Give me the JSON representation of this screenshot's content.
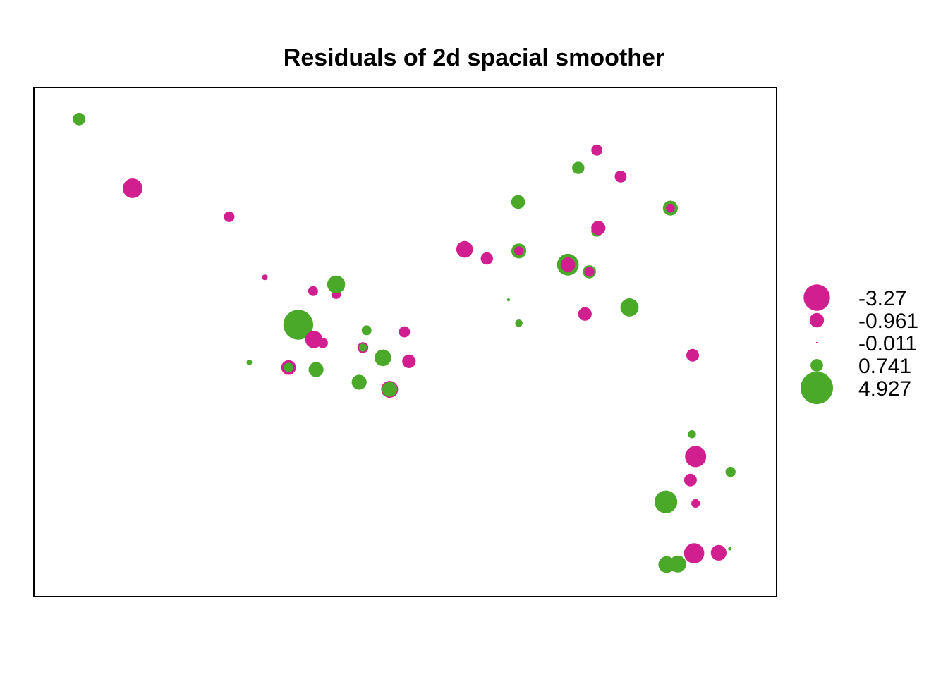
{
  "chart_data": {
    "type": "scatter",
    "subtype": "bubble",
    "title": "Residuals of 2d spacial smoother",
    "xlabel": "",
    "ylabel": "",
    "axes_shown": false,
    "frame": true,
    "xlim": [
      0,
      100
    ],
    "ylim": [
      0,
      100
    ],
    "colors": {
      "negative": "#d21f8f",
      "positive": "#4ba92a",
      "frame": "#000000"
    },
    "size_scale": {
      "reference_value": 4.927
    },
    "legend": {
      "placement": "right",
      "entries": [
        {
          "label": "-3.27",
          "value": -3.27
        },
        {
          "label": "-0.961",
          "value": -0.961
        },
        {
          "label": "-0.011",
          "value": -0.011
        },
        {
          "label": "0.741",
          "value": 0.741
        },
        {
          "label": "4.927",
          "value": 4.927
        }
      ]
    },
    "points": [
      {
        "x": 6.1,
        "y": 93.8,
        "residual": 0.741
      },
      {
        "x": 13.3,
        "y": 80.2,
        "residual": -1.8
      },
      {
        "x": 26.3,
        "y": 74.6,
        "residual": -0.53
      },
      {
        "x": 31.1,
        "y": 62.7,
        "residual": -0.15
      },
      {
        "x": 37.6,
        "y": 60.0,
        "residual": -0.45
      },
      {
        "x": 40.7,
        "y": 59.4,
        "residual": -0.43
      },
      {
        "x": 40.7,
        "y": 61.3,
        "residual": 1.5
      },
      {
        "x": 35.6,
        "y": 53.4,
        "residual": 4.2
      },
      {
        "x": 37.7,
        "y": 50.5,
        "residual": -1.4
      },
      {
        "x": 38.9,
        "y": 49.8,
        "residual": -0.5
      },
      {
        "x": 29.0,
        "y": 46.0,
        "residual": 0.15
      },
      {
        "x": 34.3,
        "y": 45.0,
        "residual": -1.0
      },
      {
        "x": 34.3,
        "y": 45.0,
        "residual": 0.4
      },
      {
        "x": 38.0,
        "y": 44.6,
        "residual": 1.05
      },
      {
        "x": 44.8,
        "y": 52.3,
        "residual": 0.45
      },
      {
        "x": 44.3,
        "y": 48.9,
        "residual": -0.55
      },
      {
        "x": 44.3,
        "y": 48.9,
        "residual": 0.3
      },
      {
        "x": 47.0,
        "y": 46.9,
        "residual": 1.3
      },
      {
        "x": 49.9,
        "y": 52.0,
        "residual": -0.58
      },
      {
        "x": 50.5,
        "y": 46.2,
        "residual": -0.85
      },
      {
        "x": 43.8,
        "y": 42.1,
        "residual": 1.05
      },
      {
        "x": 47.9,
        "y": 40.7,
        "residual": -1.35
      },
      {
        "x": 47.9,
        "y": 40.7,
        "residual": 1.05
      },
      {
        "x": 58.0,
        "y": 68.2,
        "residual": -1.3
      },
      {
        "x": 61.0,
        "y": 66.4,
        "residual": -0.7
      },
      {
        "x": 65.2,
        "y": 77.5,
        "residual": 0.9
      },
      {
        "x": 65.3,
        "y": 67.9,
        "residual": 1.05
      },
      {
        "x": 65.3,
        "y": 67.9,
        "residual": -0.4
      },
      {
        "x": 63.9,
        "y": 58.3,
        "residual": 0.04
      },
      {
        "x": 65.3,
        "y": 53.7,
        "residual": -0.25
      },
      {
        "x": 65.3,
        "y": 53.7,
        "residual": 0.25
      },
      {
        "x": 71.9,
        "y": 65.2,
        "residual": 2.2
      },
      {
        "x": 71.9,
        "y": 65.2,
        "residual": -1.0
      },
      {
        "x": 74.8,
        "y": 63.8,
        "residual": 0.8
      },
      {
        "x": 74.8,
        "y": 63.8,
        "residual": -0.45
      },
      {
        "x": 75.8,
        "y": 87.7,
        "residual": -0.58
      },
      {
        "x": 73.3,
        "y": 84.2,
        "residual": 0.71
      },
      {
        "x": 79.0,
        "y": 82.5,
        "residual": -0.65
      },
      {
        "x": 75.8,
        "y": 71.8,
        "residual": 0.6
      },
      {
        "x": 76.0,
        "y": 72.4,
        "residual": -0.95
      },
      {
        "x": 85.7,
        "y": 76.3,
        "residual": 1.05
      },
      {
        "x": 85.7,
        "y": 76.3,
        "residual": -0.38
      },
      {
        "x": 74.2,
        "y": 55.5,
        "residual": -0.85
      },
      {
        "x": 80.2,
        "y": 56.8,
        "residual": 1.55
      },
      {
        "x": 88.7,
        "y": 47.4,
        "residual": -0.75
      },
      {
        "x": 88.6,
        "y": 31.9,
        "residual": 0.3
      },
      {
        "x": 89.1,
        "y": 27.5,
        "residual": -2.1
      },
      {
        "x": 88.4,
        "y": 22.9,
        "residual": -0.75
      },
      {
        "x": 93.8,
        "y": 24.5,
        "residual": 0.48
      },
      {
        "x": 85.1,
        "y": 18.6,
        "residual": 2.4
      },
      {
        "x": 89.1,
        "y": 18.3,
        "residual": -0.35
      },
      {
        "x": 88.9,
        "y": 8.5,
        "residual": -1.9
      },
      {
        "x": 92.2,
        "y": 8.6,
        "residual": -1.15
      },
      {
        "x": 93.7,
        "y": 9.4,
        "residual": 0.06
      },
      {
        "x": 85.2,
        "y": 6.3,
        "residual": 1.3
      },
      {
        "x": 86.7,
        "y": 6.4,
        "residual": 1.35
      }
    ]
  }
}
